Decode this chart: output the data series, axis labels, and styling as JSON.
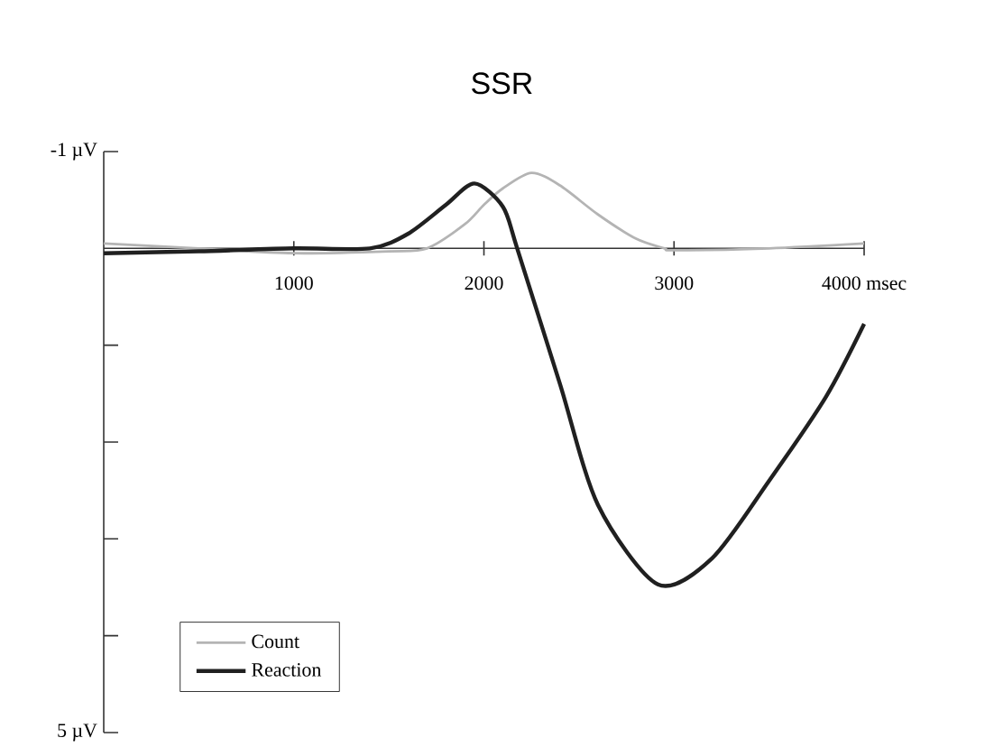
{
  "chart_data": {
    "type": "line",
    "title": "SSR",
    "xlim": [
      0,
      4000
    ],
    "xticks": [
      1000,
      2000,
      3000,
      {
        "value": 4000,
        "label": "4000 msec"
      }
    ],
    "ylim": [
      5,
      -1
    ],
    "yticks": [
      {
        "value": -1,
        "label": "-1 µV"
      },
      {
        "value": 1,
        "label": null
      },
      {
        "value": 2,
        "label": null
      },
      {
        "value": 3,
        "label": null
      },
      {
        "value": 4,
        "label": null
      },
      {
        "value": 5,
        "label": "5 µV"
      }
    ],
    "series": [
      {
        "name": "Count",
        "color": "#b4b4b4",
        "x": [
          0,
          500,
          1000,
          1500,
          1700,
          1900,
          2000,
          2100,
          2250,
          2400,
          2600,
          2800,
          2950,
          3000,
          3500,
          4000
        ],
        "values": [
          -0.05,
          0.0,
          0.05,
          0.03,
          0.0,
          -0.25,
          -0.45,
          -0.62,
          -0.78,
          -0.65,
          -0.35,
          -0.1,
          0.0,
          0.02,
          0.0,
          -0.05
        ]
      },
      {
        "name": "Reaction",
        "color": "#202020",
        "x": [
          0,
          500,
          1000,
          1400,
          1600,
          1800,
          1950,
          2100,
          2175,
          2400,
          2600,
          2915,
          3200,
          3500,
          3800,
          4000
        ],
        "values": [
          0.05,
          0.03,
          0.0,
          0.0,
          -0.15,
          -0.45,
          -0.67,
          -0.43,
          0.0,
          1.4,
          2.65,
          3.47,
          3.2,
          2.4,
          1.53,
          0.78
        ]
      }
    ],
    "legend": "bottom left",
    "grid": false,
    "marker": "none",
    "line_style": "solid"
  }
}
